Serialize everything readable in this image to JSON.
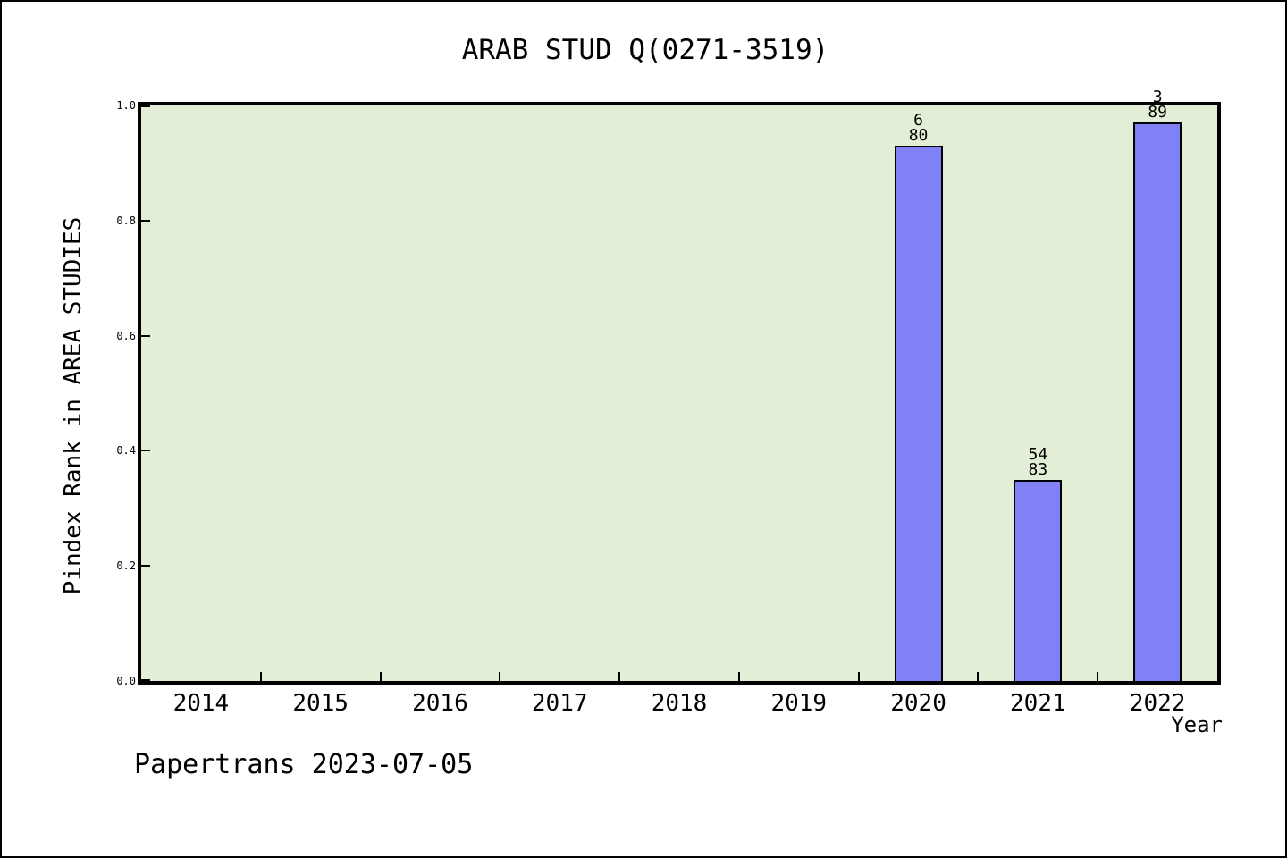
{
  "figure": {
    "background": "#ffffff",
    "border_color": "#000000"
  },
  "chart_data": {
    "type": "bar",
    "title": "ARAB STUD Q(0271-3519)",
    "xlabel": "Year",
    "ylabel": "Pindex Rank in AREA STUDIES",
    "categories": [
      "2014",
      "2015",
      "2016",
      "2017",
      "2018",
      "2019",
      "2020",
      "2021",
      "2022"
    ],
    "values": [
      null,
      null,
      null,
      null,
      null,
      null,
      0.93,
      0.35,
      0.97
    ],
    "bar_labels": [
      null,
      null,
      null,
      null,
      null,
      null,
      {
        "rank": "6",
        "total": "80"
      },
      {
        "rank": "54",
        "total": "83"
      },
      {
        "rank": "3",
        "total": "89"
      }
    ],
    "ylim": [
      0.0,
      1.0
    ],
    "yticks": [
      "0.0",
      "0.2",
      "0.4",
      "0.6",
      "0.8",
      "1.0"
    ],
    "grid": "off",
    "legend": "none",
    "plot_bg_color": "#e2efd6",
    "bar_fill_color": "#8081f5",
    "bar_edge_color": "#000000",
    "tick_style": "inward-at-category-boundaries"
  },
  "footer": {
    "text": "Papertrans 2023-07-05"
  }
}
